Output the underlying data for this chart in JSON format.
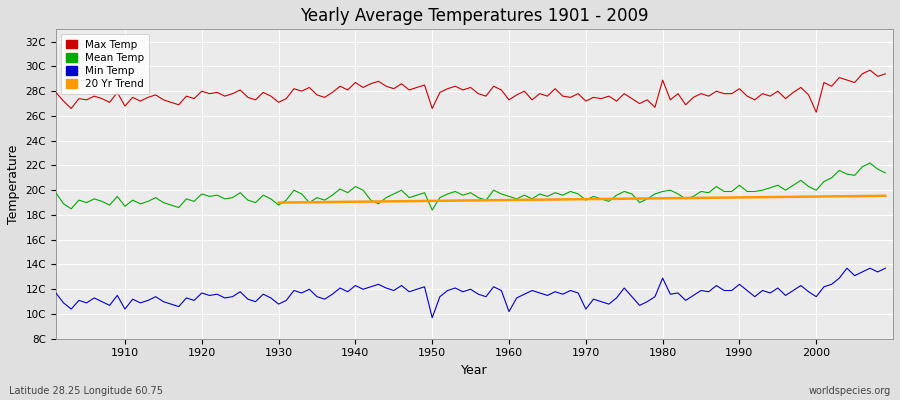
{
  "title": "Yearly Average Temperatures 1901 - 2009",
  "xlabel": "Year",
  "ylabel": "Temperature",
  "bottom_left": "Latitude 28.25 Longitude 60.75",
  "bottom_right": "worldspecies.org",
  "legend_labels": [
    "Max Temp",
    "Mean Temp",
    "Min Temp",
    "20 Yr Trend"
  ],
  "line_colors": [
    "#cc0000",
    "#00aa00",
    "#0000cc",
    "#ff9900"
  ],
  "bg_color": "#e0e0e0",
  "plot_bg_color": "#ebebeb",
  "grid_color": "#ffffff",
  "ylim": [
    8,
    33
  ],
  "yticks": [
    8,
    10,
    12,
    14,
    16,
    18,
    20,
    22,
    24,
    26,
    28,
    30,
    32
  ],
  "ytick_labels": [
    "8C",
    "10C",
    "12C",
    "14C",
    "16C",
    "18C",
    "20C",
    "22C",
    "24C",
    "26C",
    "28C",
    "30C",
    "32C"
  ],
  "xlim": [
    1901,
    2010
  ],
  "xticks": [
    1910,
    1920,
    1930,
    1940,
    1950,
    1960,
    1970,
    1980,
    1990,
    2000
  ],
  "years": [
    1901,
    1902,
    1903,
    1904,
    1905,
    1906,
    1907,
    1908,
    1909,
    1910,
    1911,
    1912,
    1913,
    1914,
    1915,
    1916,
    1917,
    1918,
    1919,
    1920,
    1921,
    1922,
    1923,
    1924,
    1925,
    1926,
    1927,
    1928,
    1929,
    1930,
    1931,
    1932,
    1933,
    1934,
    1935,
    1936,
    1937,
    1938,
    1939,
    1940,
    1941,
    1942,
    1943,
    1944,
    1945,
    1946,
    1947,
    1948,
    1949,
    1950,
    1951,
    1952,
    1953,
    1954,
    1955,
    1956,
    1957,
    1958,
    1959,
    1960,
    1961,
    1962,
    1963,
    1964,
    1965,
    1966,
    1967,
    1968,
    1969,
    1970,
    1971,
    1972,
    1973,
    1974,
    1975,
    1976,
    1977,
    1978,
    1979,
    1980,
    1981,
    1982,
    1983,
    1984,
    1985,
    1986,
    1987,
    1988,
    1989,
    1990,
    1991,
    1992,
    1993,
    1994,
    1995,
    1996,
    1997,
    1998,
    1999,
    2000,
    2001,
    2002,
    2003,
    2004,
    2005,
    2006,
    2007,
    2008,
    2009
  ],
  "max_temp": [
    27.9,
    27.2,
    26.6,
    27.4,
    27.3,
    27.6,
    27.4,
    27.1,
    27.9,
    26.8,
    27.5,
    27.2,
    27.5,
    27.7,
    27.3,
    27.1,
    26.9,
    27.6,
    27.4,
    28.0,
    27.8,
    27.9,
    27.6,
    27.8,
    28.1,
    27.5,
    27.3,
    27.9,
    27.6,
    27.1,
    27.4,
    28.2,
    28.0,
    28.3,
    27.7,
    27.5,
    27.9,
    28.4,
    28.1,
    28.7,
    28.3,
    28.6,
    28.8,
    28.4,
    28.2,
    28.6,
    28.1,
    28.3,
    28.5,
    26.6,
    27.9,
    28.2,
    28.4,
    28.1,
    28.3,
    27.8,
    27.6,
    28.4,
    28.1,
    27.3,
    27.7,
    28.0,
    27.3,
    27.8,
    27.6,
    28.2,
    27.6,
    27.5,
    27.8,
    27.2,
    27.5,
    27.4,
    27.6,
    27.2,
    27.8,
    27.4,
    27.0,
    27.3,
    26.7,
    28.9,
    27.3,
    27.8,
    26.9,
    27.5,
    27.8,
    27.6,
    28.0,
    27.8,
    27.8,
    28.2,
    27.6,
    27.3,
    27.8,
    27.6,
    28.0,
    27.4,
    27.9,
    28.3,
    27.7,
    26.3,
    28.7,
    28.4,
    29.1,
    28.9,
    28.7,
    29.4,
    29.7,
    29.2,
    29.4
  ],
  "mean_temp": [
    19.8,
    18.9,
    18.5,
    19.2,
    19.0,
    19.3,
    19.1,
    18.8,
    19.5,
    18.7,
    19.2,
    18.9,
    19.1,
    19.4,
    19.0,
    18.8,
    18.6,
    19.3,
    19.1,
    19.7,
    19.5,
    19.6,
    19.3,
    19.4,
    19.8,
    19.2,
    19.0,
    19.6,
    19.3,
    18.8,
    19.2,
    20.0,
    19.7,
    19.0,
    19.4,
    19.2,
    19.6,
    20.1,
    19.8,
    20.3,
    20.0,
    19.2,
    18.9,
    19.4,
    19.7,
    20.0,
    19.4,
    19.6,
    19.8,
    18.4,
    19.4,
    19.7,
    19.9,
    19.6,
    19.8,
    19.4,
    19.2,
    20.0,
    19.7,
    19.5,
    19.3,
    19.6,
    19.3,
    19.7,
    19.5,
    19.8,
    19.6,
    19.9,
    19.7,
    19.2,
    19.5,
    19.3,
    19.1,
    19.6,
    19.9,
    19.7,
    19.0,
    19.3,
    19.7,
    19.9,
    20.0,
    19.7,
    19.3,
    19.5,
    19.9,
    19.8,
    20.3,
    19.9,
    19.9,
    20.4,
    19.9,
    19.9,
    20.0,
    20.2,
    20.4,
    20.0,
    20.4,
    20.8,
    20.3,
    20.0,
    20.7,
    21.0,
    21.6,
    21.3,
    21.2,
    21.9,
    22.2,
    21.7,
    21.4
  ],
  "min_temp": [
    11.7,
    10.9,
    10.4,
    11.1,
    10.9,
    11.3,
    11.0,
    10.7,
    11.5,
    10.4,
    11.2,
    10.9,
    11.1,
    11.4,
    11.0,
    10.8,
    10.6,
    11.3,
    11.1,
    11.7,
    11.5,
    11.6,
    11.3,
    11.4,
    11.8,
    11.2,
    11.0,
    11.6,
    11.3,
    10.8,
    11.1,
    11.9,
    11.7,
    12.0,
    11.4,
    11.2,
    11.6,
    12.1,
    11.8,
    12.3,
    12.0,
    12.2,
    12.4,
    12.1,
    11.9,
    12.3,
    11.8,
    12.0,
    12.2,
    9.7,
    11.4,
    11.9,
    12.1,
    11.8,
    12.0,
    11.6,
    11.4,
    12.2,
    11.9,
    10.2,
    11.3,
    11.6,
    11.9,
    11.7,
    11.5,
    11.8,
    11.6,
    11.9,
    11.7,
    10.4,
    11.2,
    11.0,
    10.8,
    11.3,
    12.1,
    11.4,
    10.7,
    11.0,
    11.4,
    12.9,
    11.6,
    11.7,
    11.1,
    11.5,
    11.9,
    11.8,
    12.3,
    11.9,
    11.9,
    12.4,
    11.9,
    11.4,
    11.9,
    11.7,
    12.1,
    11.5,
    11.9,
    12.3,
    11.8,
    11.4,
    12.2,
    12.4,
    12.9,
    13.7,
    13.1,
    13.4,
    13.7,
    13.4,
    13.7
  ],
  "trend_x": [
    1930,
    2009
  ],
  "trend_y": [
    19.0,
    19.55
  ]
}
